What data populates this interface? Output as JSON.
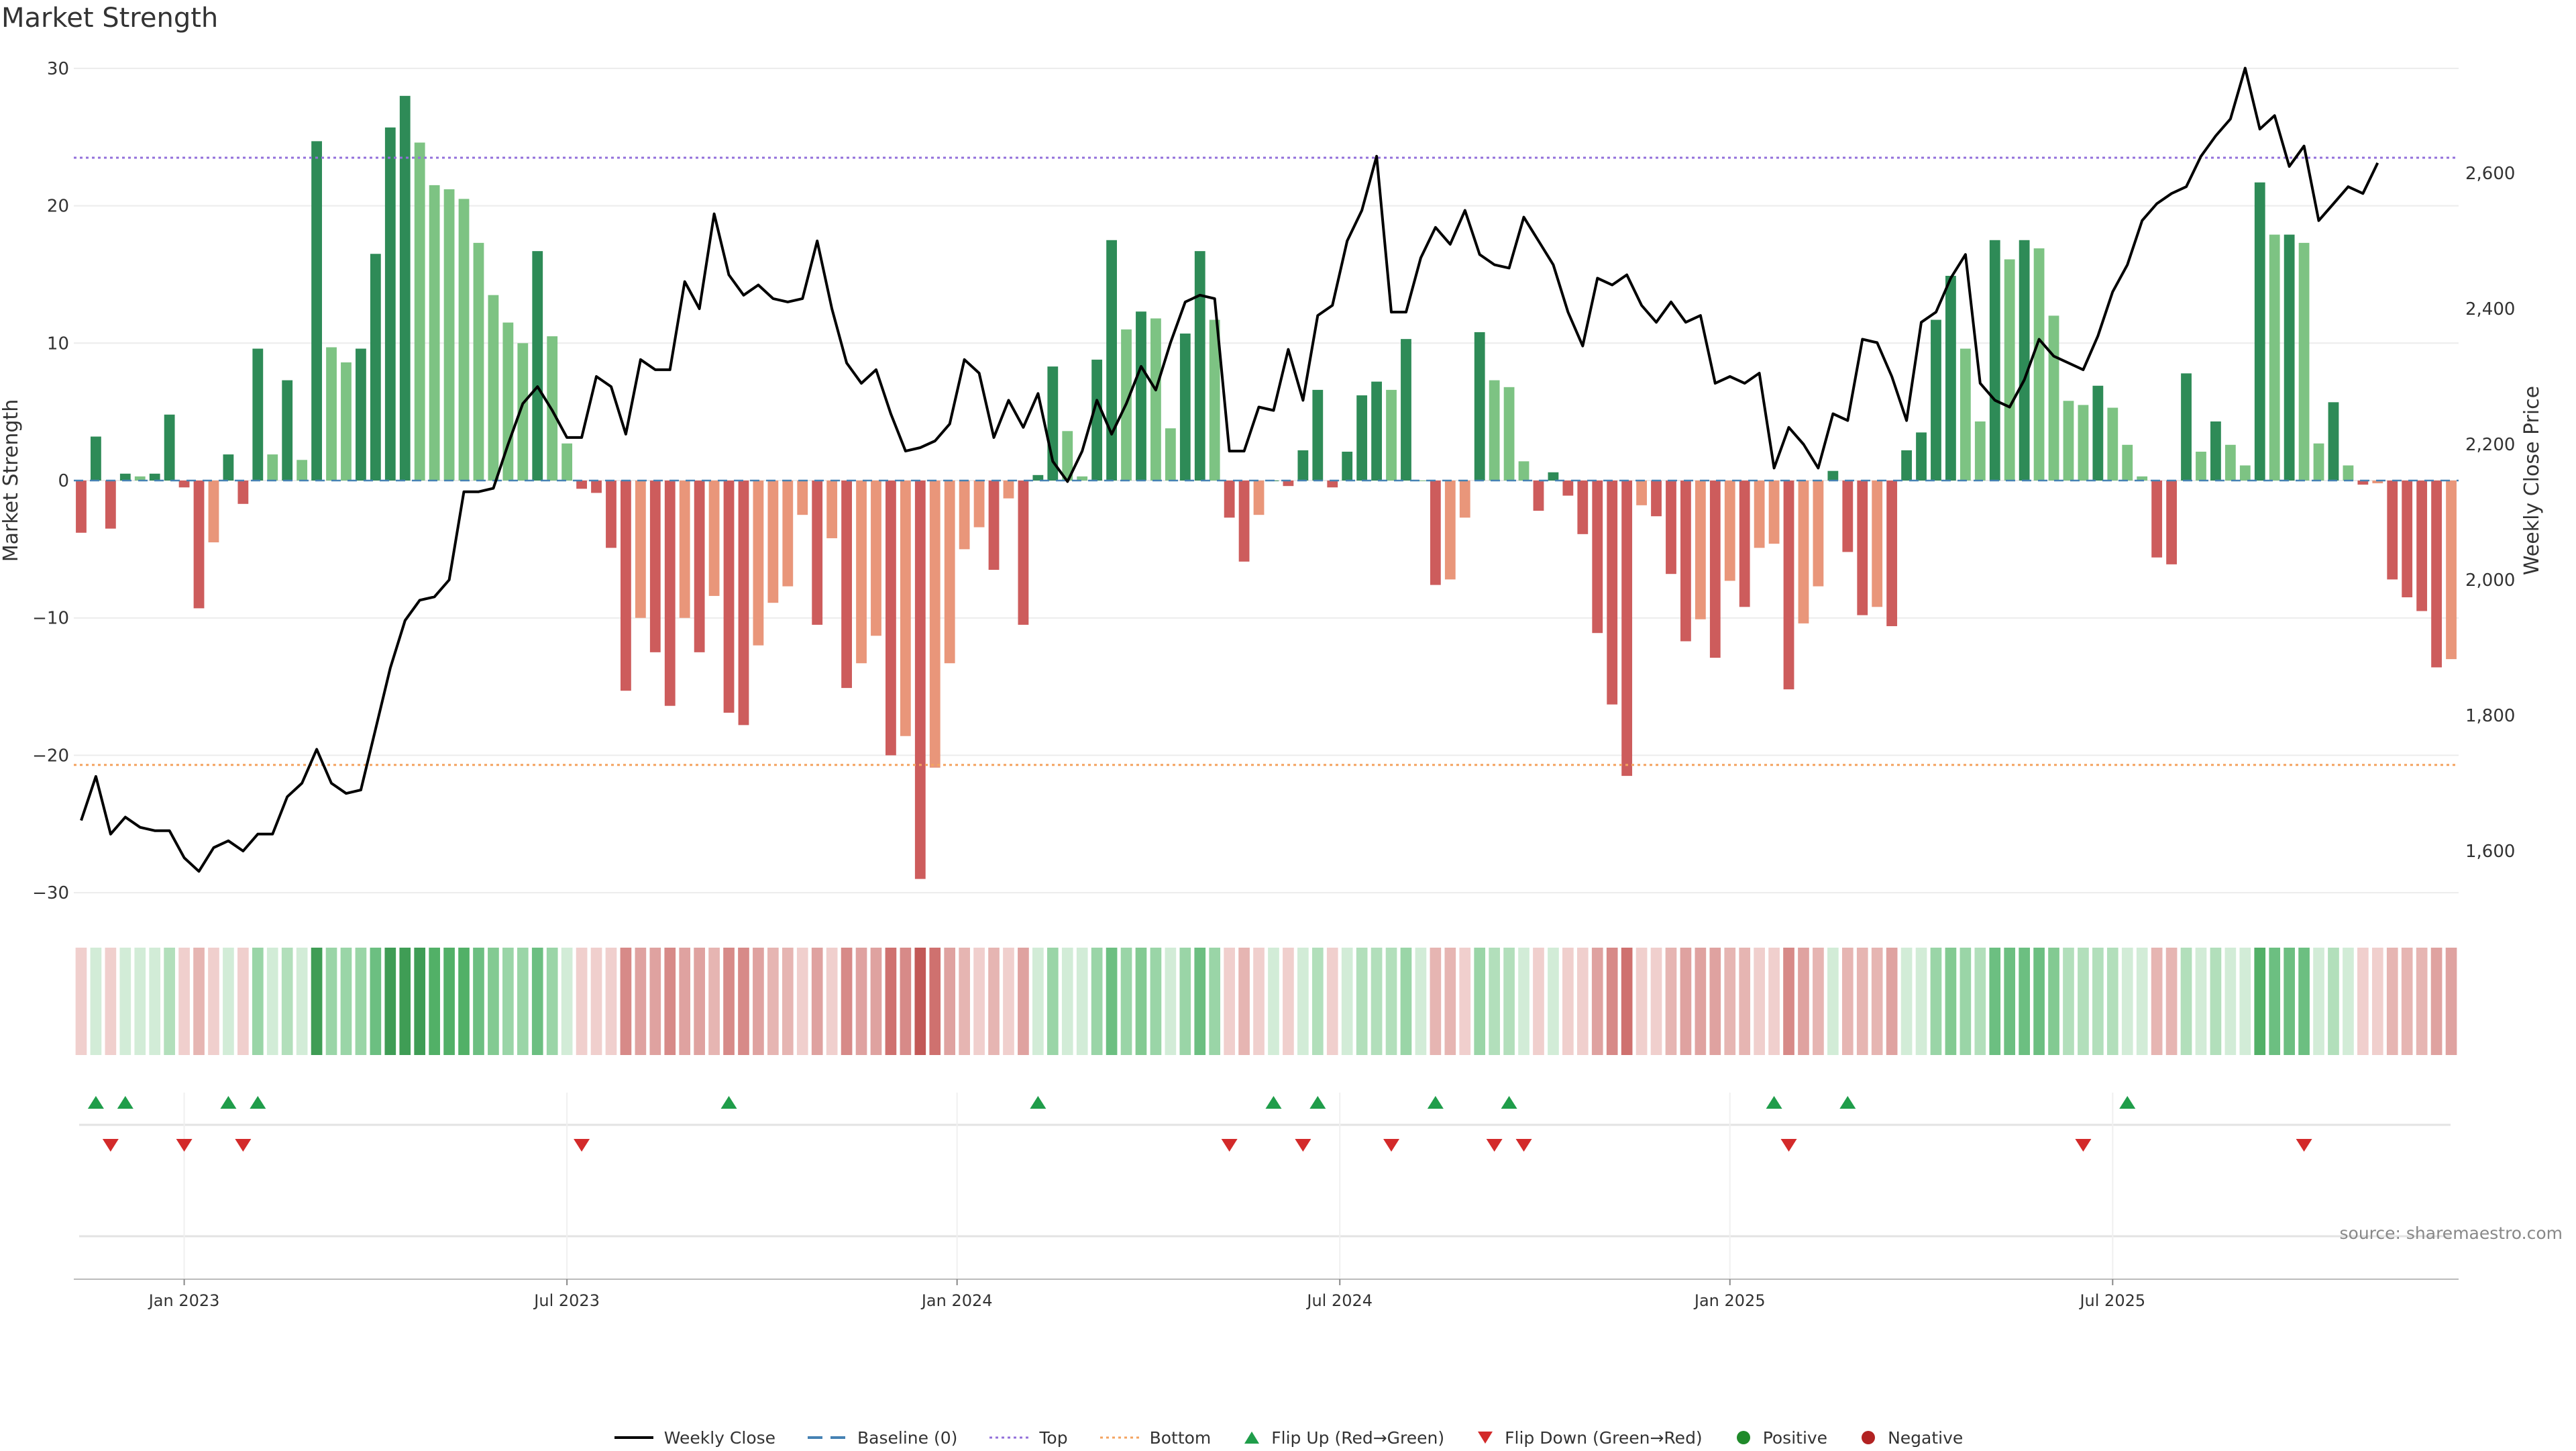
{
  "chart_data": {
    "type": "bar",
    "title": "Market Strength",
    "source": "source: sharemaestro.com",
    "left_axis": {
      "label": "Market Strength",
      "ylim": [
        -31,
        30
      ],
      "ticks": [
        30,
        20,
        10,
        0,
        -10,
        -20,
        -30
      ],
      "tick_labels": [
        "30",
        "20",
        "10",
        "0",
        "−10",
        "−20",
        "−30"
      ]
    },
    "right_axis": {
      "label": "Weekly Close Price",
      "ylim": [
        1525,
        2736
      ],
      "ticks": [
        2600,
        2400,
        2200,
        2000,
        1800,
        1600
      ],
      "tick_labels": [
        "2,600",
        "2,400",
        "2,200",
        "2,000",
        "1,800",
        "1,600"
      ]
    },
    "x_ticks": [
      {
        "label": "Jan 2023",
        "week": 7
      },
      {
        "label": "Jul 2023",
        "week": 33
      },
      {
        "label": "Jan 2024",
        "week": 59.5
      },
      {
        "label": "Jul 2024",
        "week": 85.5
      },
      {
        "label": "Jan 2025",
        "week": 112
      },
      {
        "label": "Jul 2025",
        "week": 138
      }
    ],
    "top_level": 23.5,
    "bottom_level": -20.7,
    "strength": [
      -3.8,
      3.2,
      -3.5,
      0.5,
      0.3,
      0.5,
      4.8,
      -0.5,
      -9.3,
      -4.5,
      1.9,
      -1.7,
      9.6,
      1.9,
      7.3,
      1.5,
      24.7,
      9.7,
      8.6,
      9.6,
      16.5,
      25.7,
      28,
      24.6,
      21.5,
      21.2,
      20.5,
      17.3,
      13.5,
      11.5,
      10,
      16.7,
      10.5,
      2.7,
      -0.6,
      -0.9,
      -4.9,
      -15.3,
      -10,
      -12.5,
      -16.4,
      -10,
      -12.5,
      -8.4,
      -16.9,
      -17.8,
      -12,
      -8.9,
      -7.7,
      -2.5,
      -10.5,
      -4.2,
      -15.1,
      -13.3,
      -11.3,
      -20,
      -18.6,
      -29,
      -20.9,
      -13.3,
      -5,
      -3.4,
      -6.5,
      -1.3,
      -10.5,
      0.4,
      8.3,
      3.6,
      0.3,
      8.8,
      17.5,
      11,
      12.3,
      11.8,
      3.8,
      10.7,
      16.7,
      11.7,
      -2.7,
      -5.9,
      -2.5,
      0,
      -0.4,
      2.2,
      6.6,
      -0.5,
      2.1,
      6.2,
      7.2,
      6.6,
      10.3,
      0,
      -7.6,
      -7.2,
      -2.7,
      10.8,
      7.3,
      6.8,
      1.4,
      -2.2,
      0.6,
      -1.1,
      -3.9,
      -11.1,
      -16.3,
      -21.5,
      -1.8,
      -2.6,
      -6.8,
      -11.7,
      -10.1,
      -12.9,
      -7.3,
      -9.2,
      -4.9,
      -4.6,
      -15.2,
      -10.4,
      -7.7,
      0.7,
      -5.2,
      -9.8,
      -9.2,
      -10.6,
      2.2,
      3.5,
      11.7,
      14.9,
      9.6,
      4.3,
      17.5,
      16.1,
      17.5,
      16.9,
      12,
      5.8,
      5.5,
      6.9,
      5.3,
      2.6,
      0.3,
      -5.6,
      -6.1,
      7.8,
      2.1,
      4.3,
      2.6,
      1.1,
      21.7,
      17.9,
      17.9,
      17.3,
      2.7,
      5.7,
      1.1,
      -0.3,
      -0.2,
      -7.2,
      -8.5,
      -9.5,
      -13.6,
      -13
    ],
    "weekly_close": [
      1645,
      1710,
      1625,
      1650,
      1635,
      1630,
      1630,
      1590,
      1570,
      1605,
      1615,
      1600,
      1625,
      1625,
      1680,
      1700,
      1750,
      1700,
      1685,
      1690,
      1780,
      1870,
      1940,
      1970,
      1975,
      2000,
      2130,
      2130,
      2135,
      2200,
      2260,
      2285,
      2250,
      2210,
      2210,
      2300,
      2285,
      2215,
      2325,
      2310,
      2310,
      2440,
      2400,
      2540,
      2450,
      2420,
      2435,
      2415,
      2410,
      2415,
      2500,
      2400,
      2320,
      2290,
      2310,
      2245,
      2190,
      2195,
      2205,
      2230,
      2325,
      2305,
      2210,
      2265,
      2225,
      2275,
      2175,
      2145,
      2190,
      2265,
      2215,
      2260,
      2315,
      2280,
      2350,
      2410,
      2420,
      2415,
      2190,
      2190,
      2255,
      2250,
      2340,
      2265,
      2390,
      2405,
      2500,
      2545,
      2625,
      2395,
      2395,
      2475,
      2520,
      2495,
      2545,
      2480,
      2465,
      2460,
      2535,
      2500,
      2465,
      2395,
      2345,
      2445,
      2435,
      2450,
      2405,
      2380,
      2410,
      2380,
      2390,
      2290,
      2300,
      2290,
      2305,
      2165,
      2225,
      2200,
      2165,
      2245,
      2235,
      2355,
      2350,
      2300,
      2235,
      2380,
      2395,
      2445,
      2480,
      2290,
      2265,
      2255,
      2295,
      2355,
      2330,
      2320,
      2310,
      2360,
      2425,
      2465,
      2530,
      2555,
      2570,
      2580,
      2625,
      2655,
      2680,
      2755,
      2665,
      2685,
      2610,
      2640,
      2530,
      2555,
      2580,
      2570,
      2615
    ]
  },
  "heat_colors": {
    "pos": [
      "#d2ecd7",
      "#b2dfbb",
      "#9ad5a7",
      "#83ca92",
      "#6cbf81",
      "#52b067",
      "#3f9d55"
    ],
    "neg": [
      "#f0cfcd",
      "#e6b5b2",
      "#dfa2a0",
      "#d78a88",
      "#cf716f",
      "#c25957"
    ]
  },
  "flips": {
    "up": [
      1,
      3,
      10,
      12,
      44,
      65,
      81,
      84,
      92,
      97,
      115,
      120,
      139
    ],
    "down": [
      2,
      7,
      11,
      34,
      78,
      83,
      89,
      96,
      98,
      116,
      136,
      151
    ]
  },
  "colors": {
    "pos_strong": "#2e8b57",
    "pos_light": "#7dc383",
    "neg_strong": "#cd5c5c",
    "neg_light": "#e9967a",
    "close_line": "#000000",
    "baseline": "#4682b4",
    "top": "#9370db",
    "bottom": "#f4a460",
    "flip_up": "#1f9d4a",
    "flip_down": "#d32a2a",
    "positive_dot": "#1f8a2a",
    "negative_dot": "#b22222"
  },
  "legend": [
    {
      "label": "Weekly Close",
      "kind": "line"
    },
    {
      "label": "Baseline (0)",
      "kind": "dash"
    },
    {
      "label": "Top",
      "kind": "dot-purple"
    },
    {
      "label": "Bottom",
      "kind": "dot-orange"
    },
    {
      "label": "Flip Up (Red→Green)",
      "kind": "tri-up"
    },
    {
      "label": "Flip Down (Green→Red)",
      "kind": "tri-down"
    },
    {
      "label": "Positive",
      "kind": "circle-green"
    },
    {
      "label": "Negative",
      "kind": "circle-red"
    }
  ]
}
